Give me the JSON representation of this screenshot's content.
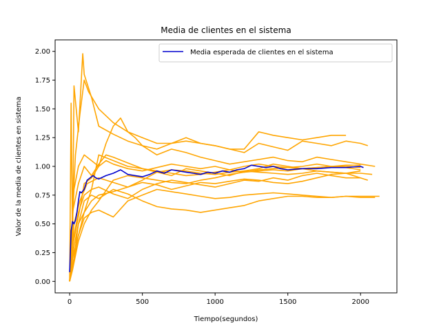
{
  "chart_data": {
    "type": "line",
    "title": "Media de clientes en el sistema",
    "xlabel": "Tiempo(segundos)",
    "ylabel": "Valor de la media de clientes en sistema",
    "xlim": [
      -100,
      2250
    ],
    "ylim": [
      -0.1,
      2.1
    ],
    "xticks": [
      0,
      500,
      1000,
      1500,
      2000
    ],
    "yticks": [
      0.0,
      0.25,
      0.5,
      0.75,
      1.0,
      1.25,
      1.5,
      1.75,
      2.0
    ],
    "xtick_labels": [
      "0",
      "500",
      "1000",
      "1500",
      "2000"
    ],
    "ytick_labels": [
      "0.00",
      "0.25",
      "0.50",
      "0.75",
      "1.00",
      "1.25",
      "1.50",
      "1.75",
      "2.00"
    ],
    "grid": false,
    "legend": {
      "position": "top-right",
      "entries": [
        "Media esperada de clientes en el sistema"
      ]
    },
    "colors": {
      "mean": "#0000cd",
      "runs": "#ffa500"
    },
    "series": [
      {
        "name": "Media esperada de clientes en el sistema",
        "role": "mean",
        "x": [
          0,
          10,
          20,
          30,
          40,
          50,
          60,
          70,
          80,
          100,
          120,
          140,
          160,
          180,
          200,
          250,
          300,
          350,
          400,
          450,
          500,
          550,
          600,
          650,
          700,
          750,
          800,
          850,
          900,
          950,
          1000,
          1050,
          1100,
          1150,
          1200,
          1250,
          1300,
          1350,
          1400,
          1450,
          1500,
          1600,
          1700,
          1800,
          1900,
          2000,
          2020
        ],
        "y": [
          0.08,
          0.44,
          0.52,
          0.5,
          0.53,
          0.6,
          0.7,
          0.78,
          0.77,
          0.8,
          0.88,
          0.9,
          0.92,
          0.9,
          0.89,
          0.92,
          0.94,
          0.97,
          0.93,
          0.92,
          0.91,
          0.93,
          0.96,
          0.94,
          0.97,
          0.96,
          0.95,
          0.94,
          0.93,
          0.95,
          0.94,
          0.96,
          0.95,
          0.97,
          0.98,
          1.01,
          1.0,
          0.99,
          1.0,
          0.98,
          0.97,
          0.98,
          0.98,
          0.99,
          0.99,
          1.0,
          0.99
        ]
      },
      {
        "role": "run",
        "x": [
          0,
          10,
          20,
          30,
          60,
          90,
          100,
          150,
          200,
          300,
          400,
          500,
          600,
          700,
          800,
          900,
          1000,
          1100,
          1200,
          1300,
          1400,
          1500,
          1600,
          1700,
          1800,
          1900
        ],
        "y": [
          0.0,
          1.55,
          0.3,
          1.7,
          1.3,
          1.98,
          1.8,
          1.6,
          1.35,
          1.28,
          1.22,
          1.18,
          1.15,
          1.2,
          1.22,
          1.2,
          1.18,
          1.15,
          1.15,
          1.3,
          1.27,
          1.25,
          1.23,
          1.25,
          1.27,
          1.27
        ]
      },
      {
        "role": "run",
        "x": [
          0,
          20,
          40,
          70,
          100,
          130,
          200,
          300,
          400,
          500,
          600,
          700,
          800,
          900,
          1000,
          1100,
          1200,
          1300,
          1400,
          1500,
          1600,
          1700,
          1800,
          1900,
          2000,
          2050
        ],
        "y": [
          0.0,
          0.6,
          1.1,
          1.45,
          1.75,
          1.65,
          1.5,
          1.38,
          1.3,
          1.25,
          1.2,
          1.2,
          1.25,
          1.2,
          1.18,
          1.15,
          1.12,
          1.2,
          1.17,
          1.14,
          1.22,
          1.2,
          1.18,
          1.22,
          1.2,
          1.18
        ]
      },
      {
        "role": "run",
        "x": [
          0,
          20,
          50,
          80,
          100,
          150,
          200,
          250,
          300,
          350,
          400,
          450,
          500,
          600,
          700,
          800,
          900,
          1000,
          1100,
          1200,
          1300,
          1400,
          1500,
          1600,
          1700,
          1800,
          1900,
          2000,
          2100
        ],
        "y": [
          0.0,
          0.3,
          0.5,
          0.7,
          0.85,
          0.9,
          1.0,
          1.2,
          1.35,
          1.42,
          1.3,
          1.25,
          1.18,
          1.1,
          1.15,
          1.12,
          1.08,
          1.05,
          1.02,
          1.04,
          1.06,
          1.08,
          1.05,
          1.04,
          1.08,
          1.06,
          1.04,
          1.02,
          1.0
        ]
      },
      {
        "role": "run",
        "x": [
          0,
          30,
          60,
          100,
          150,
          200,
          250,
          300,
          400,
          500,
          600,
          700,
          800,
          900,
          1000,
          1100,
          1200,
          1300,
          1400,
          1500,
          1600,
          1700,
          1800,
          1900,
          2000
        ],
        "y": [
          0.0,
          0.8,
          1.0,
          1.1,
          1.05,
          1.0,
          1.05,
          1.02,
          0.98,
          0.96,
          0.99,
          1.02,
          1.0,
          0.98,
          1.0,
          0.97,
          0.95,
          0.97,
          0.98,
          0.99,
          1.0,
          1.02,
          1.0,
          0.99,
          0.97
        ]
      },
      {
        "role": "run",
        "x": [
          0,
          20,
          60,
          100,
          150,
          200,
          300,
          400,
          500,
          600,
          700,
          800,
          900,
          1000,
          1100,
          1200,
          1300,
          1400,
          1500,
          1600,
          1700,
          1800,
          1900,
          2000,
          2080
        ],
        "y": [
          0.0,
          0.2,
          0.4,
          0.6,
          0.8,
          1.1,
          1.05,
          1.0,
          0.98,
          0.95,
          0.97,
          0.96,
          0.94,
          0.93,
          0.95,
          0.96,
          0.95,
          0.94,
          0.93,
          0.94,
          0.96,
          0.95,
          0.94,
          0.94,
          0.93
        ]
      },
      {
        "role": "run",
        "x": [
          0,
          30,
          70,
          120,
          200,
          300,
          400,
          500,
          600,
          700,
          800,
          900,
          1000,
          1100,
          1200,
          1300,
          1400,
          1500,
          1600,
          1700,
          1800,
          1900,
          2000
        ],
        "y": [
          0.0,
          0.5,
          0.7,
          0.85,
          0.9,
          0.86,
          0.82,
          0.88,
          0.95,
          0.92,
          0.98,
          0.96,
          0.94,
          0.92,
          0.96,
          0.98,
          1.02,
          1.0,
          0.98,
          0.96,
          0.95,
          0.94,
          0.9
        ]
      },
      {
        "role": "run",
        "x": [
          0,
          30,
          60,
          100,
          150,
          200,
          300,
          400,
          500,
          600,
          700,
          800,
          900,
          1000,
          1100,
          1200,
          1300,
          1400,
          1500,
          1600,
          1700,
          1800,
          1900,
          2000,
          2050
        ],
        "y": [
          0.0,
          0.4,
          0.6,
          0.75,
          0.8,
          0.82,
          0.76,
          0.72,
          0.8,
          0.85,
          0.88,
          0.86,
          0.84,
          0.82,
          0.85,
          0.88,
          0.87,
          0.9,
          0.88,
          0.92,
          0.94,
          0.92,
          0.9,
          0.9,
          0.88
        ]
      },
      {
        "role": "run",
        "x": [
          0,
          30,
          60,
          100,
          150,
          200,
          300,
          400,
          500,
          600,
          700,
          800,
          900,
          1000,
          1100,
          1200,
          1300,
          1400,
          1500,
          1600,
          1700,
          1800,
          1900,
          2000
        ],
        "y": [
          0.0,
          0.3,
          0.5,
          0.6,
          0.7,
          0.75,
          0.78,
          0.82,
          0.86,
          0.84,
          0.8,
          0.83,
          0.86,
          0.85,
          0.87,
          0.89,
          0.88,
          0.86,
          0.85,
          0.87,
          0.9,
          0.93,
          0.94,
          0.96
        ]
      },
      {
        "role": "run",
        "x": [
          0,
          30,
          60,
          100,
          150,
          200,
          300,
          400,
          500,
          600,
          700,
          800,
          900,
          1000,
          1100,
          1200,
          1300,
          1400,
          1500,
          1600,
          1700,
          1800,
          1900,
          2000,
          2130
        ],
        "y": [
          0.0,
          0.2,
          0.4,
          0.55,
          0.6,
          0.62,
          0.56,
          0.7,
          0.75,
          0.8,
          0.78,
          0.76,
          0.74,
          0.72,
          0.73,
          0.75,
          0.76,
          0.77,
          0.76,
          0.75,
          0.74,
          0.73,
          0.74,
          0.74,
          0.74
        ]
      },
      {
        "role": "run",
        "x": [
          0,
          30,
          60,
          100,
          150,
          200,
          300,
          400,
          500,
          600,
          700,
          800,
          900,
          1000,
          1100,
          1200,
          1300,
          1400,
          1500,
          1600,
          1700,
          1800,
          1900,
          2000,
          2100
        ],
        "y": [
          0.0,
          0.2,
          0.5,
          0.7,
          0.75,
          0.72,
          0.8,
          0.76,
          0.7,
          0.65,
          0.63,
          0.62,
          0.6,
          0.62,
          0.64,
          0.66,
          0.7,
          0.72,
          0.74,
          0.74,
          0.73,
          0.73,
          0.74,
          0.73,
          0.73
        ]
      },
      {
        "role": "run",
        "x": [
          0,
          20,
          60,
          100,
          150,
          200,
          300,
          400,
          500,
          600,
          700,
          800,
          900,
          1000,
          1100,
          1200,
          1300,
          1400,
          1500,
          1600,
          1700,
          1800,
          1900,
          2000
        ],
        "y": [
          0.0,
          0.1,
          0.35,
          0.5,
          0.62,
          0.7,
          0.88,
          0.92,
          0.9,
          0.88,
          0.86,
          0.85,
          0.88,
          0.9,
          0.93,
          0.95,
          0.96,
          0.97,
          0.96,
          0.98,
          0.99,
          1.0,
          1.0,
          0.99
        ]
      },
      {
        "role": "run",
        "x": [
          0,
          20,
          60,
          100,
          150,
          200,
          250,
          300,
          400,
          500,
          600,
          700,
          800,
          900,
          1000,
          1100,
          1200,
          1300,
          1400,
          1500,
          1600,
          1700,
          1800,
          1900,
          2000
        ],
        "y": [
          0.0,
          0.6,
          0.85,
          1.0,
          0.92,
          1.02,
          1.1,
          1.08,
          1.03,
          0.98,
          0.96,
          0.94,
          0.92,
          0.93,
          0.95,
          0.97,
          1.0,
          1.02,
          1.0,
          0.99,
          0.98,
          0.99,
          1.0,
          1.01,
          1.01
        ]
      }
    ]
  }
}
